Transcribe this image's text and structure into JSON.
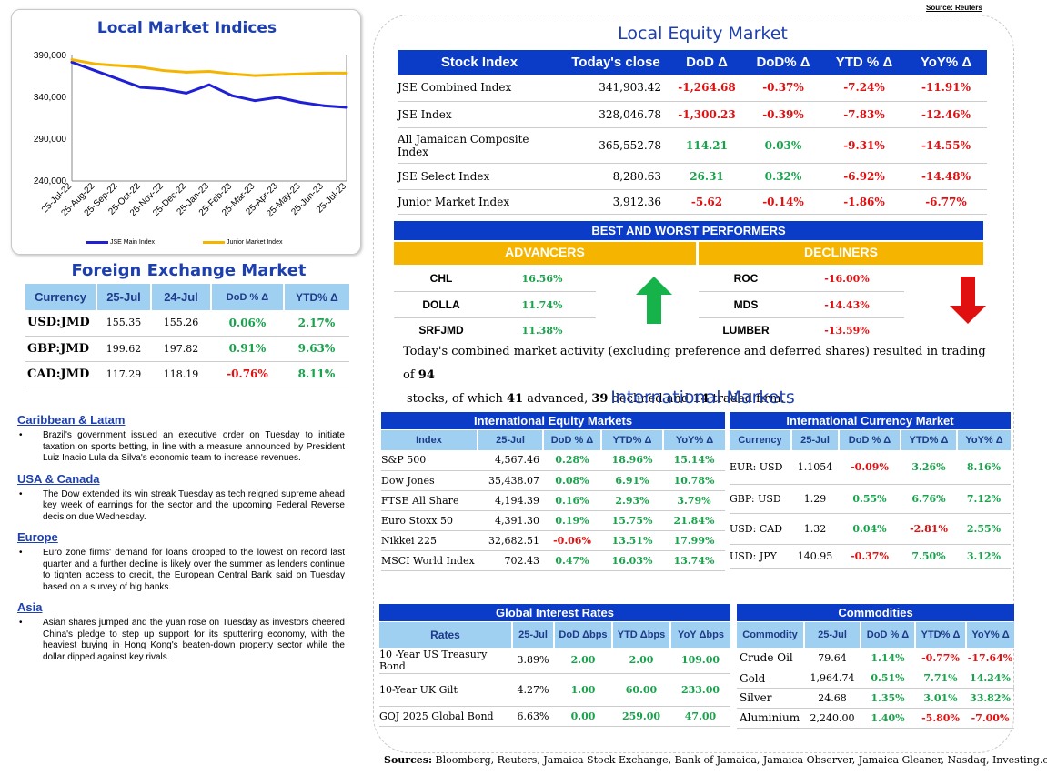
{
  "source_top": "Source: Reuters",
  "chart": {
    "title": "Local Market Indices",
    "legend": [
      "JSE Main Index",
      "Junior Market Index"
    ]
  },
  "chart_data": {
    "type": "line",
    "title": "Local Market Indices",
    "x": [
      "25-Jul-22",
      "25-Aug-22",
      "25-Sep-22",
      "25-Oct-22",
      "25-Nov-22",
      "25-Dec-22",
      "25-Jan-23",
      "25-Feb-23",
      "25-Mar-23",
      "25-Apr-23",
      "25-May-23",
      "25-Jun-23",
      "25-Jul-23"
    ],
    "yticks": [
      "390,000",
      "340,000",
      "290,000",
      "240,000"
    ],
    "ylim": [
      240000,
      390000
    ],
    "series": [
      {
        "name": "JSE Main Index",
        "color": "#1f1fd6",
        "values": [
          382000,
          372000,
          362000,
          352000,
          350000,
          345000,
          355000,
          342000,
          336000,
          340000,
          334000,
          330000,
          328000
        ]
      },
      {
        "name": "Junior Market Index",
        "color": "#f4b400",
        "values": [
          385000,
          380000,
          378000,
          376000,
          372000,
          370000,
          371000,
          368000,
          366000,
          367000,
          368000,
          369000,
          369000
        ]
      }
    ]
  },
  "fx": {
    "title": "Foreign Exchange Market",
    "headers": [
      "Currency",
      "25-Jul",
      "24-Jul",
      "DoD % Δ",
      "YTD% Δ"
    ],
    "rows": [
      [
        "USD:JMD",
        "155.35",
        "155.26",
        "0.06%",
        "2.17%"
      ],
      [
        "GBP:JMD",
        "199.62",
        "197.82",
        "0.91%",
        "9.63%"
      ],
      [
        "CAD:JMD",
        "117.29",
        "118.19",
        "-0.76%",
        "8.11%"
      ]
    ]
  },
  "news": [
    {
      "heading": "Caribbean & Latam",
      "text": "Brazil's government issued an executive order on Tuesday to initiate taxation on sports betting, in line with a measure announced by President Luiz Inacio Lula da Silva's economic team to increase revenues."
    },
    {
      "heading": "USA & Canada",
      "text": "The Dow extended its win streak Tuesday as tech reigned supreme ahead key week of earnings for the sector and the upcoming Federal Reverse decision due Wednesday."
    },
    {
      "heading": "Europe",
      "text": "Euro zone firms' demand for loans dropped to the lowest on record last quarter and a further decline is likely over the summer as lenders continue to tighten access to credit, the European Central Bank said on Tuesday based on a survey of big banks."
    },
    {
      "heading": "Asia",
      "text": "Asian shares jumped and the yuan rose on Tuesday as investors cheered China's pledge to step up support for its sputtering economy, with the heaviest buying in Hong Kong's beaten-down property sector while the dollar dipped against key rivals."
    }
  ],
  "equity": {
    "title": "Local Equity Market",
    "headers": [
      "Stock Index",
      "Today's close",
      "DoD  Δ",
      "DoD% Δ",
      "YTD % Δ",
      "YoY% Δ"
    ],
    "rows": [
      [
        "JSE Combined Index",
        "341,903.42",
        "-1,264.68",
        "-0.37%",
        "-7.24%",
        "-11.91%"
      ],
      [
        "JSE Index",
        "328,046.78",
        "-1,300.23",
        "-0.39%",
        "-7.83%",
        "-12.46%"
      ],
      [
        "All Jamaican Composite Index",
        "365,552.78",
        "114.21",
        "0.03%",
        "-9.31%",
        "-14.55%"
      ],
      [
        "JSE Select Index",
        "8,280.63",
        "26.31",
        "0.32%",
        "-6.92%",
        "-14.48%"
      ],
      [
        "Junior Market Index",
        "3,912.36",
        "-5.62",
        "-0.14%",
        "-1.86%",
        "-6.77%"
      ]
    ]
  },
  "performers": {
    "title": "BEST AND WORST PERFORMERS",
    "adv_label": "ADVANCERS",
    "dec_label": "DECLINERS",
    "advancers": [
      [
        "CHL",
        "16.56%"
      ],
      [
        "DOLLA",
        "11.74%"
      ],
      [
        "SRFJMD",
        "11.38%"
      ]
    ],
    "decliners": [
      [
        "ROC",
        "-16.00%"
      ],
      [
        "MDS",
        "-14.43%"
      ],
      [
        "LUMBER",
        "-13.59%"
      ]
    ]
  },
  "summary": {
    "p1": "Today's combined market activity (excluding preference and deferred shares) resulted in trading of ",
    "n1": "94",
    "p2": "stocks, of which ",
    "n2": "41",
    "p3": " advanced, ",
    "n3": "39",
    "p4": " declined and ",
    "n4": "14",
    "p5": " traded firm."
  },
  "intl_title": "International Markets",
  "intl_equity": {
    "title": "International Equity Markets",
    "headers": [
      "Index",
      "25-Jul",
      "DoD % Δ",
      "YTD% Δ",
      "YoY% Δ"
    ],
    "rows": [
      [
        "S&P 500",
        "4,567.46",
        "0.28%",
        "18.96%",
        "15.14%"
      ],
      [
        "Dow Jones",
        "35,438.07",
        "0.08%",
        "6.91%",
        "10.78%"
      ],
      [
        "FTSE All Share",
        "4,194.39",
        "0.16%",
        "2.93%",
        "3.79%"
      ],
      [
        "Euro Stoxx 50",
        "4,391.30",
        "0.19%",
        "15.75%",
        "21.84%"
      ],
      [
        "Nikkei 225",
        "32,682.51",
        "-0.06%",
        "13.51%",
        "17.99%"
      ],
      [
        "MSCI World Index",
        "702.43",
        "0.47%",
        "16.03%",
        "13.74%"
      ]
    ]
  },
  "intl_fx": {
    "title": "International Currency Market",
    "headers": [
      "Currency",
      "25-Jul",
      "DoD % Δ",
      "YTD% Δ",
      "YoY% Δ"
    ],
    "rows": [
      [
        "EUR: USD",
        "1.1054",
        "-0.09%",
        "3.26%",
        "8.16%"
      ],
      [
        "GBP: USD",
        "1.29",
        "0.55%",
        "6.76%",
        "7.12%"
      ],
      [
        "USD: CAD",
        "1.32",
        "0.04%",
        "-2.81%",
        "2.55%"
      ],
      [
        "USD: JPY",
        "140.95",
        "-0.37%",
        "7.50%",
        "3.12%"
      ]
    ]
  },
  "rates": {
    "title": "Global Interest Rates",
    "headers": [
      "Rates",
      "25-Jul",
      "DoD Δbps",
      "YTD Δbps",
      "YoY Δbps"
    ],
    "rows": [
      [
        "10 -Year US Treasury Bond",
        "3.89%",
        "2.00",
        "2.00",
        "109.00"
      ],
      [
        "10-Year UK Gilt",
        "4.27%",
        "1.00",
        "60.00",
        "233.00"
      ],
      [
        "GOJ 2025 Global Bond",
        "6.63%",
        "0.00",
        "259.00",
        "47.00"
      ]
    ]
  },
  "commodities": {
    "title": "Commodities",
    "headers": [
      "Commodity",
      "25-Jul",
      "DoD % Δ",
      "YTD% Δ",
      "YoY% Δ"
    ],
    "rows": [
      [
        "Crude Oil",
        "79.64",
        "1.14%",
        "-0.77%",
        "-17.64%"
      ],
      [
        "Gold",
        "1,964.74",
        "0.51%",
        "7.71%",
        "14.24%"
      ],
      [
        "Silver",
        "24.68",
        "1.35%",
        "3.01%",
        "33.82%"
      ],
      [
        "Aluminium",
        "2,240.00",
        "1.40%",
        "-5.80%",
        "-7.00%"
      ]
    ]
  },
  "sources": {
    "label": "Sources:",
    "text": " Bloomberg, Reuters, Jamaica Stock Exchange, Bank of Jamaica, Jamaica Observer, Jamaica Gleaner, Nasdaq, Investing.com"
  }
}
